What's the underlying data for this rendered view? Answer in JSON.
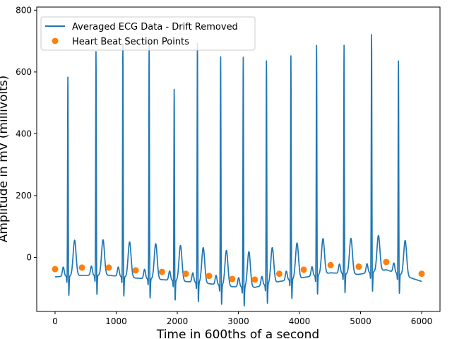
{
  "chart_data": {
    "type": "line",
    "xlabel": "Time in 600ths of a second",
    "ylabel": "Amplitude in mV (millivolts)",
    "xlim": [
      -300,
      6300
    ],
    "ylim": [
      -175,
      810
    ],
    "xticks": [
      0,
      1000,
      2000,
      3000,
      4000,
      5000,
      6000
    ],
    "yticks": [
      0,
      200,
      400,
      600,
      800
    ],
    "grid": false,
    "legend_position": "top-left",
    "series": [
      {
        "name": "Averaged ECG Data - Drift Removed",
        "type": "line",
        "color": "#1f77b4",
        "peaks": [
          {
            "x": 210,
            "r": 650
          },
          {
            "x": 670,
            "r": 730
          },
          {
            "x": 1110,
            "r": 760
          },
          {
            "x": 1540,
            "r": 770
          },
          {
            "x": 1950,
            "r": 625
          },
          {
            "x": 2330,
            "r": 780
          },
          {
            "x": 2710,
            "r": 745
          },
          {
            "x": 3080,
            "r": 750
          },
          {
            "x": 3460,
            "r": 730
          },
          {
            "x": 3860,
            "r": 730
          },
          {
            "x": 4280,
            "r": 750
          },
          {
            "x": 4730,
            "r": 745
          },
          {
            "x": 5180,
            "r": 775
          },
          {
            "x": 5620,
            "r": 695
          }
        ]
      },
      {
        "name": "Heart Beat Section Points",
        "type": "scatter",
        "color": "#ff7f0e",
        "x": [
          0,
          440,
          880,
          1320,
          1750,
          2140,
          2520,
          2900,
          3270,
          3670,
          4070,
          4510,
          4970,
          5420,
          6000
        ],
        "y": [
          -38,
          -33,
          -33,
          -42,
          -47,
          -53,
          -60,
          -70,
          -72,
          -53,
          -40,
          -25,
          -30,
          -15,
          -53
        ]
      }
    ]
  }
}
